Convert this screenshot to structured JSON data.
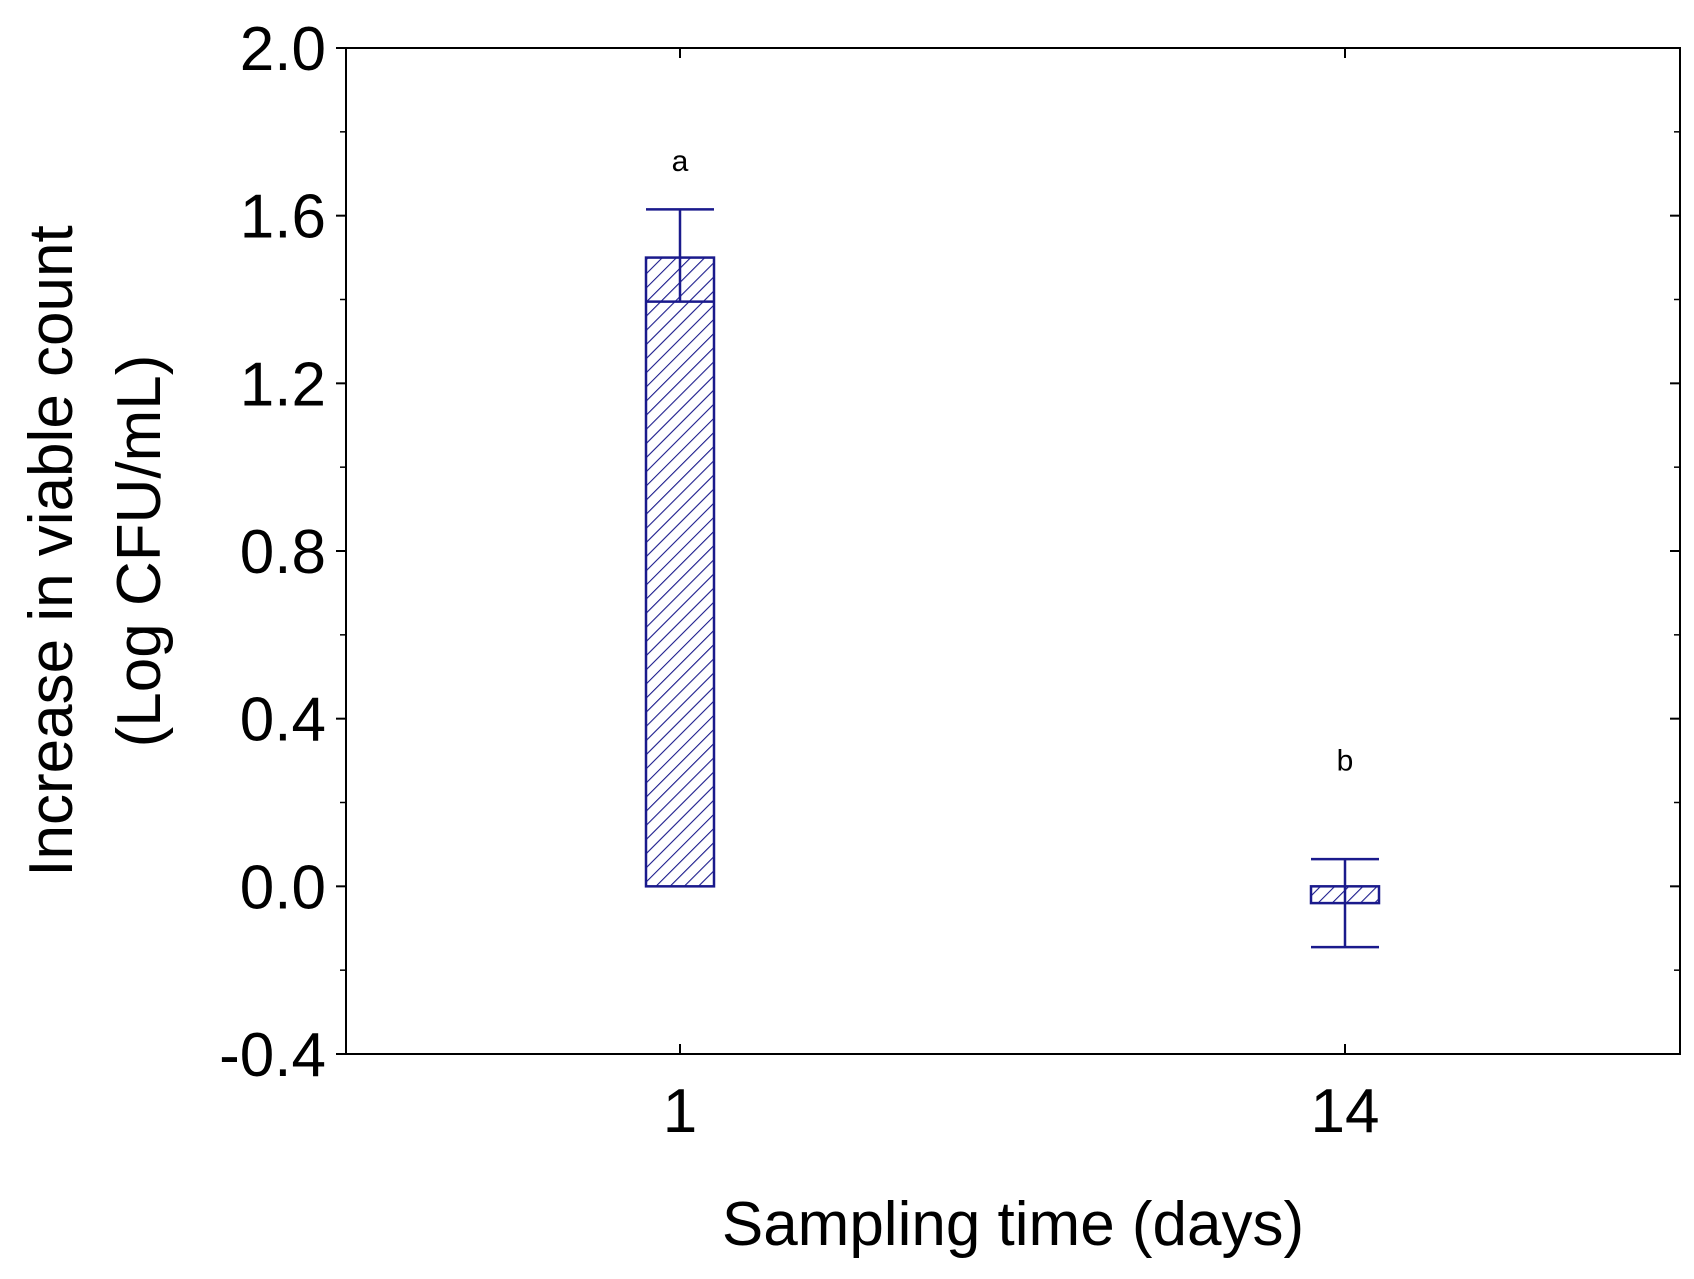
{
  "chart_data": {
    "type": "bar",
    "title": "",
    "xlabel": "Sampling time (days)",
    "ylabel_line1": "Increase in viable count",
    "ylabel_line2": "(Log CFU/mL)",
    "categories": [
      "1",
      "14"
    ],
    "values": [
      1.5,
      -0.04
    ],
    "error_upper": [
      1.615,
      0.065
    ],
    "error_lower": [
      1.395,
      -0.145
    ],
    "significance_letters": [
      "a",
      "b"
    ],
    "ylim": [
      -0.4,
      2.0
    ],
    "yticks": [
      -0.4,
      0.0,
      0.4,
      0.8,
      1.2,
      1.6,
      2.0
    ],
    "ytick_labels": [
      "-0.4",
      "0.0",
      "0.4",
      "0.8",
      "1.2",
      "1.6",
      "2.0"
    ],
    "grid": false,
    "colors": {
      "bar_stroke": "#1a1a8c",
      "hatch": "#1a1a8c",
      "axis": "#000000",
      "text": "#000000"
    }
  }
}
